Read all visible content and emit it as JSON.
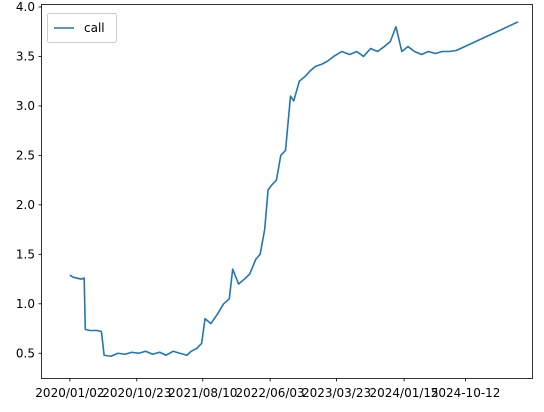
{
  "chart_data": {
    "type": "line",
    "title": "",
    "xlabel": "",
    "ylabel": "",
    "x_tick_labels": [
      "2020/01/02",
      "2020/10/23",
      "2021/08/10",
      "2022/06/03",
      "2023/03/23",
      "2024/01/15",
      "2024-10-12"
    ],
    "y_tick_labels": [
      "0.5",
      "1.0",
      "1.5",
      "2.0",
      "2.5",
      "3.0",
      "3.5",
      "4.0"
    ],
    "ylim": [
      0.25,
      4.02
    ],
    "grid": false,
    "legend_position": "top-left",
    "series": [
      {
        "name": "call",
        "color": "#1f77b4",
        "points": [
          [
            "2020-01-02",
            1.29
          ],
          [
            "2020-01-15",
            1.27
          ],
          [
            "2020-02-01",
            1.26
          ],
          [
            "2020-02-20",
            1.25
          ],
          [
            "2020-03-05",
            1.26
          ],
          [
            "2020-03-10",
            0.74
          ],
          [
            "2020-04-01",
            0.73
          ],
          [
            "2020-05-01",
            0.73
          ],
          [
            "2020-05-20",
            0.72
          ],
          [
            "2020-06-01",
            0.48
          ],
          [
            "2020-07-01",
            0.47
          ],
          [
            "2020-08-01",
            0.5
          ],
          [
            "2020-09-01",
            0.49
          ],
          [
            "2020-10-01",
            0.51
          ],
          [
            "2020-11-01",
            0.5
          ],
          [
            "2020-12-01",
            0.52
          ],
          [
            "2021-01-01",
            0.49
          ],
          [
            "2021-02-01",
            0.51
          ],
          [
            "2021-03-01",
            0.48
          ],
          [
            "2021-04-01",
            0.52
          ],
          [
            "2021-05-01",
            0.5
          ],
          [
            "2021-06-01",
            0.48
          ],
          [
            "2021-06-20",
            0.52
          ],
          [
            "2021-07-15",
            0.55
          ],
          [
            "2021-08-05",
            0.6
          ],
          [
            "2021-08-20",
            0.85
          ],
          [
            "2021-09-15",
            0.8
          ],
          [
            "2021-10-15",
            0.9
          ],
          [
            "2021-11-10",
            1.0
          ],
          [
            "2021-12-05",
            1.05
          ],
          [
            "2021-12-20",
            1.35
          ],
          [
            "2022-01-15",
            1.2
          ],
          [
            "2022-02-10",
            1.25
          ],
          [
            "2022-03-05",
            1.3
          ],
          [
            "2022-04-01",
            1.45
          ],
          [
            "2022-04-20",
            1.5
          ],
          [
            "2022-05-10",
            1.75
          ],
          [
            "2022-05-25",
            2.15
          ],
          [
            "2022-06-10",
            2.2
          ],
          [
            "2022-07-01",
            2.25
          ],
          [
            "2022-07-20",
            2.5
          ],
          [
            "2022-08-10",
            2.55
          ],
          [
            "2022-09-01",
            3.1
          ],
          [
            "2022-09-15",
            3.05
          ],
          [
            "2022-10-10",
            3.25
          ],
          [
            "2022-11-05",
            3.3
          ],
          [
            "2022-11-25",
            3.35
          ],
          [
            "2022-12-20",
            3.4
          ],
          [
            "2023-01-15",
            3.42
          ],
          [
            "2023-02-10",
            3.45
          ],
          [
            "2023-03-10",
            3.5
          ],
          [
            "2023-04-15",
            3.55
          ],
          [
            "2023-05-20",
            3.52
          ],
          [
            "2023-06-20",
            3.55
          ],
          [
            "2023-07-20",
            3.5
          ],
          [
            "2023-08-20",
            3.58
          ],
          [
            "2023-09-20",
            3.55
          ],
          [
            "2023-10-20",
            3.6
          ],
          [
            "2023-11-15",
            3.65
          ],
          [
            "2023-12-10",
            3.8
          ],
          [
            "2024-01-05",
            3.55
          ],
          [
            "2024-02-01",
            3.6
          ],
          [
            "2024-03-01",
            3.55
          ],
          [
            "2024-04-01",
            3.52
          ],
          [
            "2024-05-01",
            3.55
          ],
          [
            "2024-06-01",
            3.53
          ],
          [
            "2024-07-01",
            3.55
          ],
          [
            "2024-08-01",
            3.55
          ],
          [
            "2024-09-01",
            3.56
          ],
          [
            "2025-06-01",
            3.85
          ]
        ]
      }
    ]
  }
}
